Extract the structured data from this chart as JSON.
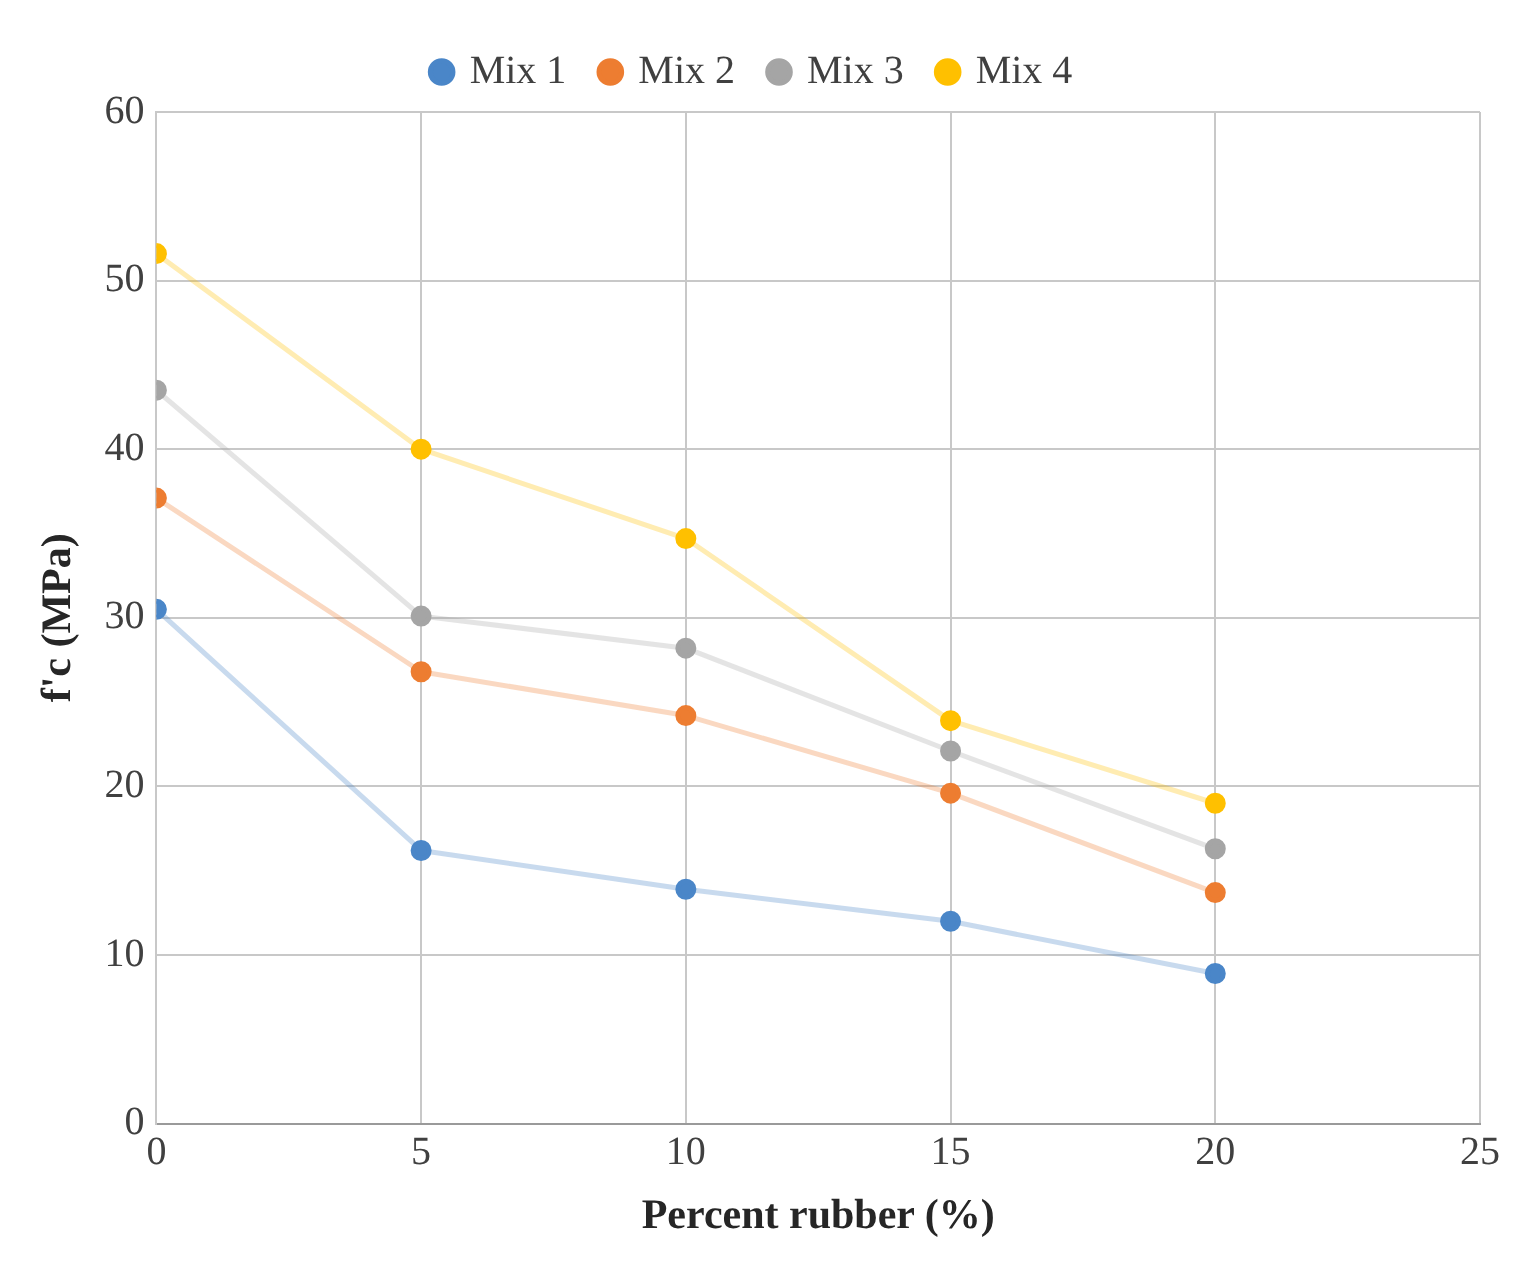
{
  "chart_data": {
    "type": "line",
    "xlabel": "Percent rubber (%)",
    "ylabel": "f'c (MPa)",
    "x": [
      0,
      5,
      10,
      15,
      20
    ],
    "series": [
      {
        "name": "Mix 1",
        "color": "#4a86c8",
        "values": [
          30.5,
          16.2,
          13.9,
          12.0,
          8.9
        ]
      },
      {
        "name": "Mix 2",
        "color": "#ed7d31",
        "values": [
          37.1,
          26.8,
          24.2,
          19.6,
          13.7
        ]
      },
      {
        "name": "Mix 3",
        "color": "#a5a5a5",
        "values": [
          43.5,
          30.1,
          28.2,
          22.1,
          16.3
        ]
      },
      {
        "name": "Mix 4",
        "color": "#ffc000",
        "values": [
          51.6,
          40.0,
          34.7,
          23.9,
          19.0
        ]
      }
    ],
    "xlim": [
      0,
      25
    ],
    "xticks": [
      0,
      5,
      10,
      15,
      20,
      25
    ],
    "ylim": [
      0,
      60
    ],
    "yticks": [
      0,
      10,
      20,
      30,
      40,
      50,
      60
    ],
    "grid": true,
    "legend": "top",
    "marker": "circle",
    "line_style": "solid"
  }
}
